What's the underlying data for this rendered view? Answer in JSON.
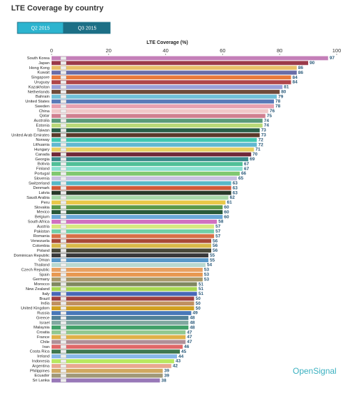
{
  "header": {
    "title": "LTE Coverage by country"
  },
  "controls": {
    "buttons": [
      "Q2 2015",
      "Q3 2015"
    ],
    "active": 1
  },
  "watermark": "OpenSignal",
  "chart_data": {
    "type": "bar",
    "orientation": "horizontal",
    "x_label": "LTE Coverage (%)",
    "xlim": [
      0,
      100
    ],
    "xticks": [
      0,
      20,
      40,
      60,
      80,
      100
    ],
    "grid": false,
    "categories": [
      "South Korea",
      "Japan",
      "Hong Kong",
      "Kuwait",
      "Singapore",
      "Uruguay",
      "Kazakhstan",
      "Netherlands",
      "Bahrain",
      "United States",
      "Sweden",
      "China",
      "Qatar",
      "Australia",
      "Estonia",
      "Taiwan",
      "United Arab Emirates",
      "Norway",
      "Lithuania",
      "Hungary",
      "Canada",
      "Georgia",
      "Bolivia",
      "Finland",
      "Portugal",
      "Slovenia",
      "Switzerland",
      "Denmark",
      "Latvia",
      "Saudi Arabia",
      "Peru",
      "Slovakia",
      "Mexico",
      "Belgium",
      "South Africa",
      "Austria",
      "Pakistan",
      "Romania",
      "Venezuela",
      "Colombia",
      "Poland",
      "Dominican Republic",
      "Oman",
      "Thailand",
      "Czech Republic",
      "Spain",
      "Germany",
      "Morocco",
      "New Zealand",
      "Italy",
      "Brazil",
      "India",
      "United Kingdom",
      "Russia",
      "Greece",
      "Israel",
      "Malaysia",
      "Croatia",
      "France",
      "Chile",
      "Iran",
      "Costa Rica",
      "Ireland",
      "Indonesia",
      "Argentina",
      "Philippines",
      "Ecuador",
      "Sri Lanka"
    ],
    "values": [
      97,
      90,
      86,
      86,
      84,
      84,
      81,
      80,
      79,
      78,
      78,
      76,
      75,
      74,
      74,
      73,
      73,
      72,
      72,
      71,
      70,
      69,
      67,
      67,
      66,
      65,
      63,
      63,
      63,
      62,
      61,
      60,
      60,
      60,
      58,
      57,
      57,
      57,
      56,
      56,
      56,
      55,
      55,
      54,
      53,
      53,
      53,
      51,
      51,
      51,
      50,
      50,
      50,
      49,
      48,
      48,
      48,
      47,
      47,
      47,
      46,
      45,
      44,
      43,
      42,
      39,
      39,
      38
    ],
    "colors": [
      "#c47fb8",
      "#9b3a4a",
      "#e8c06a",
      "#6a6ea8",
      "#e87a3c",
      "#b0464a",
      "#9aa0d8",
      "#6e4a3a",
      "#70c0d8",
      "#5a7ab8",
      "#e8a0b0",
      "#f0c8c8",
      "#d08090",
      "#5a9a7a",
      "#b8d878",
      "#2a6048",
      "#5a3a2a",
      "#40c8b0",
      "#60b8d0",
      "#e8d060",
      "#702838",
      "#3a8a8a",
      "#50c098",
      "#8ae0d0",
      "#80c870",
      "#c8c0e0",
      "#58b8c8",
      "#d05838",
      "#283828",
      "#a8d8a8",
      "#e8c848",
      "#5a9848",
      "#285838",
      "#6aa8d8",
      "#d070c0",
      "#d8e880",
      "#70d0a8",
      "#d87048",
      "#a84838",
      "#d8b848",
      "#484838",
      "#383838",
      "#5898c8",
      "#b8d8d0",
      "#e8a060",
      "#e89850",
      "#a89868",
      "#808860",
      "#a8d850",
      "#4868b8",
      "#a04040",
      "#c09060",
      "#d0a020",
      "#4878b8",
      "#508098",
      "#80a8a0",
      "#40a068",
      "#90c890",
      "#e0b048",
      "#b09098",
      "#e06868",
      "#407850",
      "#88b8e8",
      "#b8e860",
      "#e8a890",
      "#d0a860",
      "#a09878",
      "#9878b8"
    ],
    "value_label_color": "#2a5a7a"
  }
}
